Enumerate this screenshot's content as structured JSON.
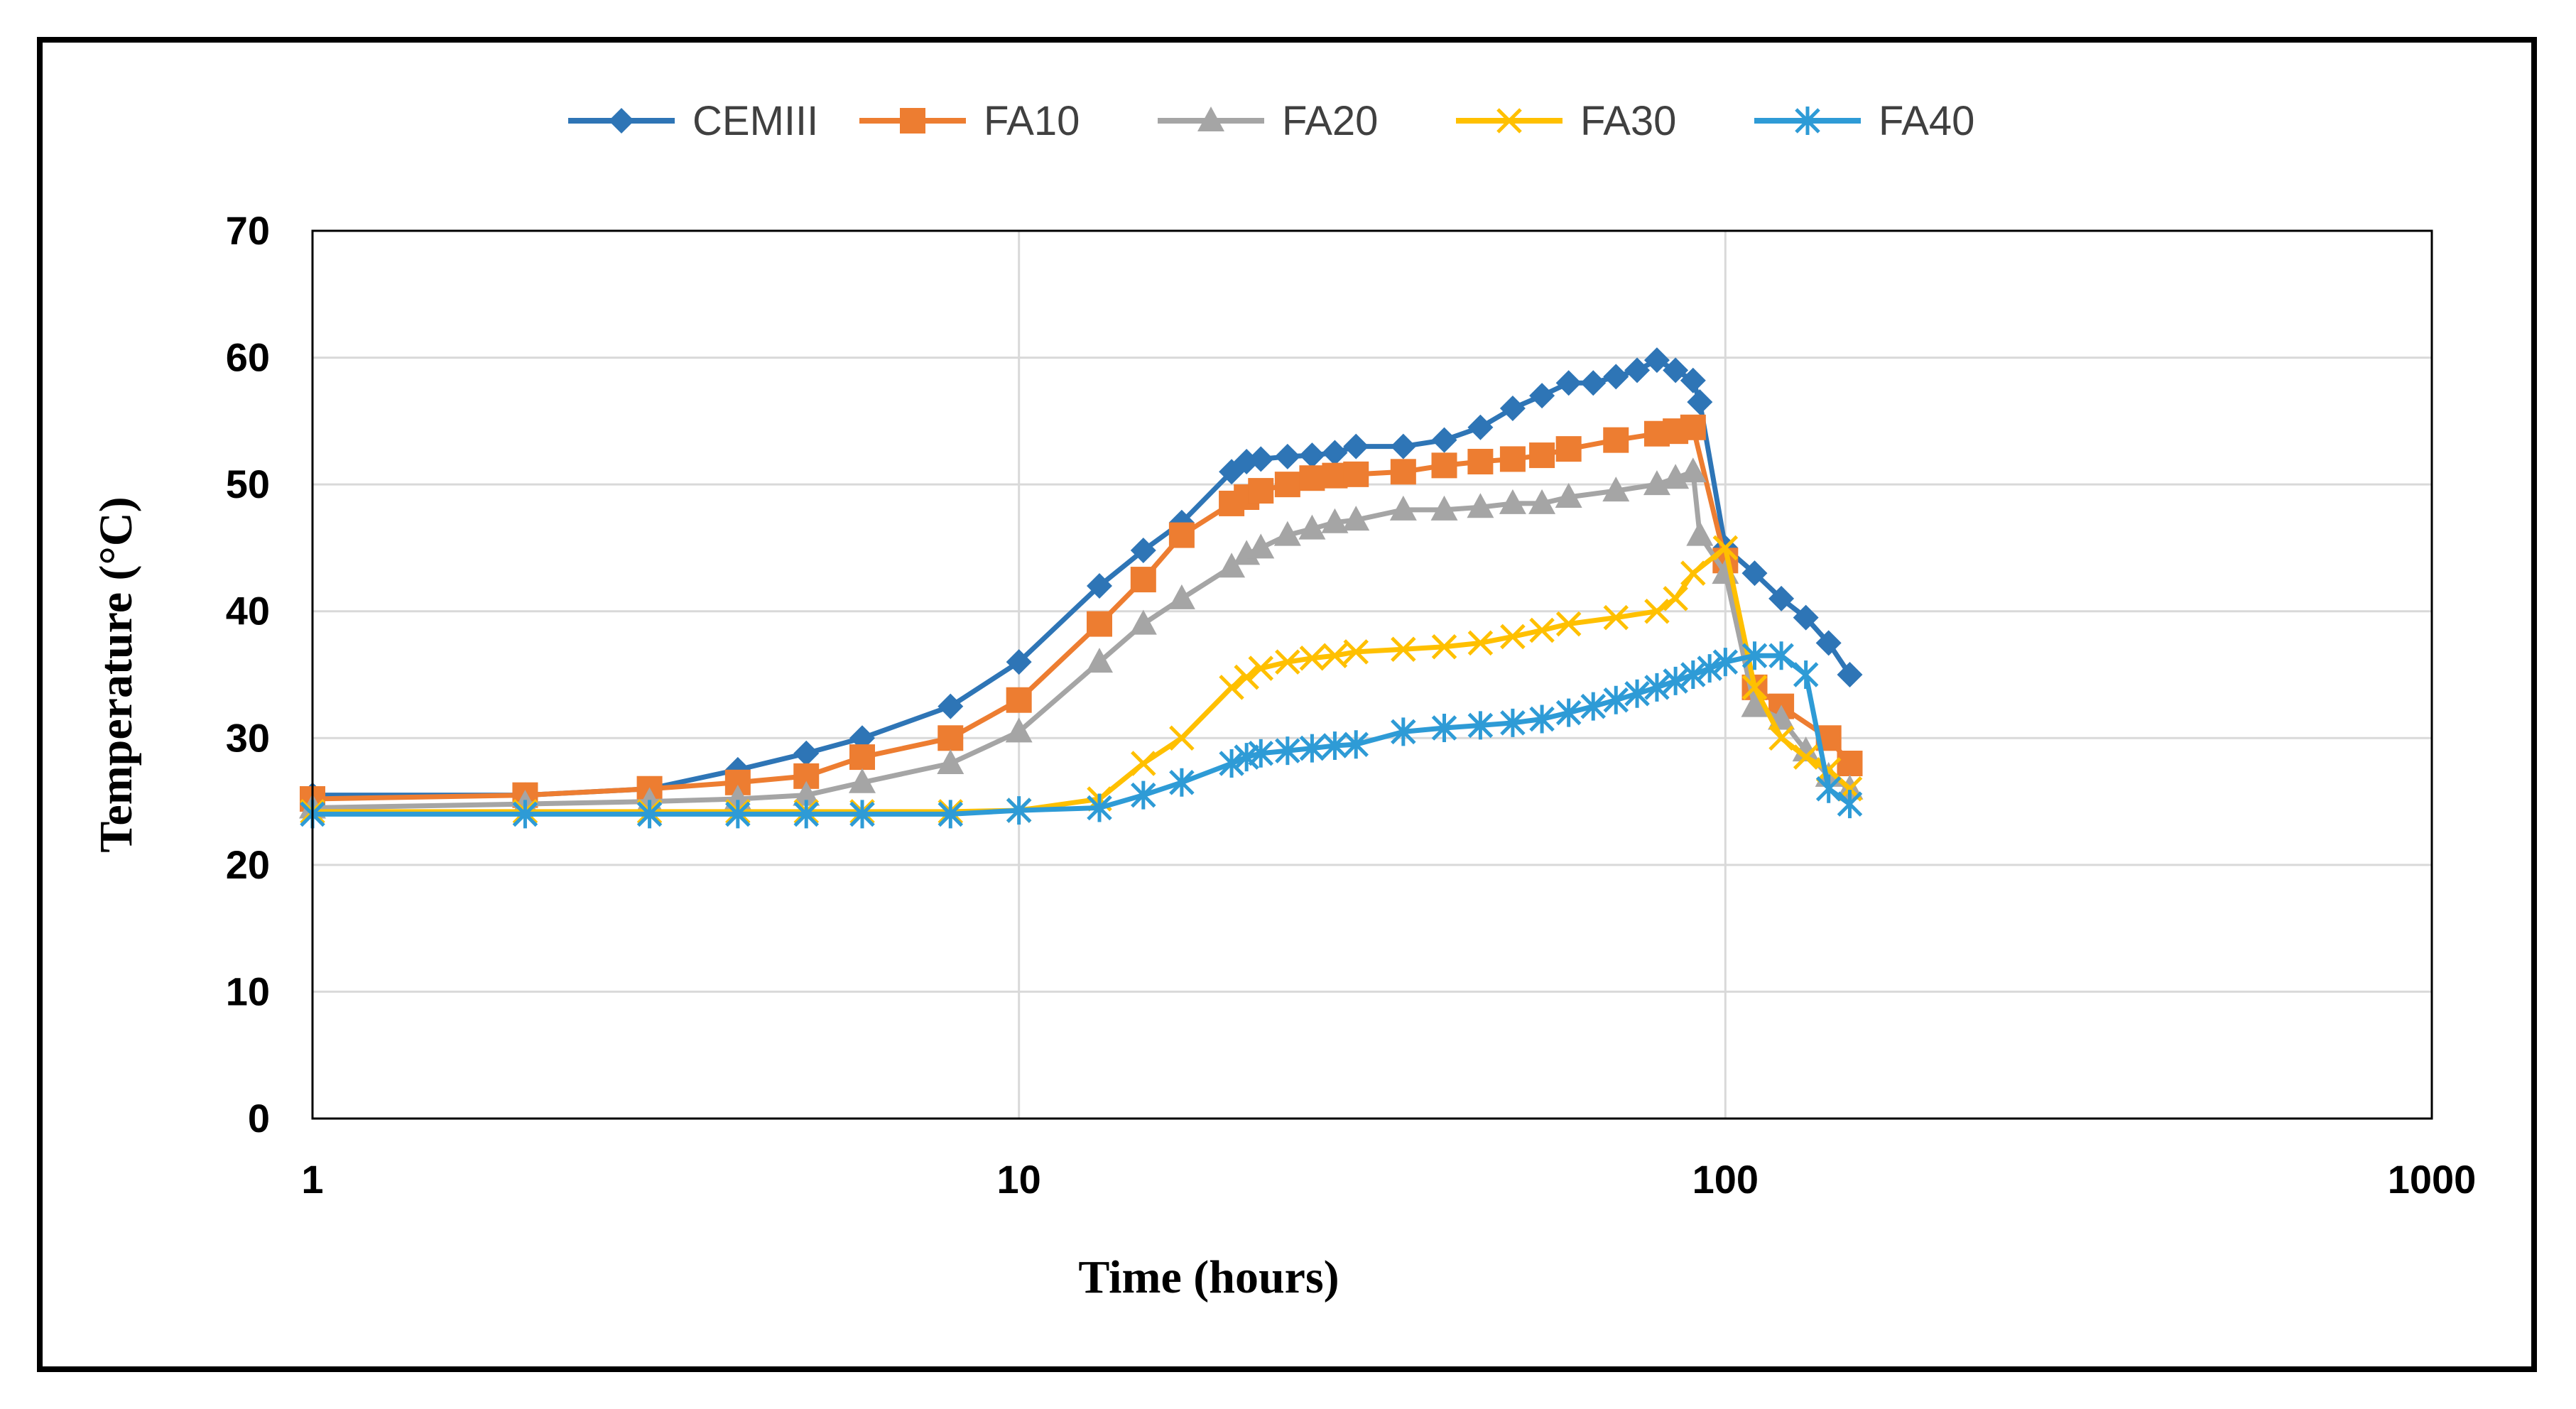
{
  "chart_data": {
    "type": "line",
    "title": "",
    "xlabel": "Time (hours)",
    "ylabel": "Temperature (°C)",
    "xscale": "log",
    "xlim": [
      1,
      1000
    ],
    "ylim": [
      0,
      70
    ],
    "x_ticks": [
      1,
      10,
      100,
      1000
    ],
    "x_tick_labels": [
      "1",
      "10",
      "100",
      "1000"
    ],
    "y_ticks": [
      0,
      10,
      20,
      30,
      40,
      50,
      60,
      70
    ],
    "y_tick_labels": [
      "0",
      "10",
      "20",
      "30",
      "40",
      "50",
      "60",
      "70"
    ],
    "grid": true,
    "legend_position": "top-center",
    "series": [
      {
        "name": "CEMIII",
        "color": "#2E75B6",
        "marker": "diamond",
        "points": [
          [
            1,
            25.5
          ],
          [
            2,
            25.5
          ],
          [
            3,
            26
          ],
          [
            4,
            27.5
          ],
          [
            5,
            28.8
          ],
          [
            6,
            30
          ],
          [
            8,
            32.5
          ],
          [
            10,
            36
          ],
          [
            13,
            42
          ],
          [
            15,
            44.8
          ],
          [
            17,
            47
          ],
          [
            20,
            51
          ],
          [
            21,
            51.8
          ],
          [
            22,
            52
          ],
          [
            24,
            52.2
          ],
          [
            26,
            52.3
          ],
          [
            28,
            52.5
          ],
          [
            30,
            53
          ],
          [
            35,
            53
          ],
          [
            40,
            53.5
          ],
          [
            45,
            54.5
          ],
          [
            50,
            56
          ],
          [
            55,
            57
          ],
          [
            60,
            58
          ],
          [
            65,
            58
          ],
          [
            70,
            58.5
          ],
          [
            75,
            59
          ],
          [
            80,
            59.8
          ],
          [
            85,
            59
          ],
          [
            90,
            58.2
          ],
          [
            92,
            56.5
          ],
          [
            100,
            45
          ],
          [
            110,
            43
          ],
          [
            120,
            41
          ],
          [
            130,
            39.5
          ],
          [
            140,
            37.5
          ],
          [
            150,
            35
          ]
        ]
      },
      {
        "name": "FA10",
        "color": "#ED7D31",
        "marker": "square",
        "points": [
          [
            1,
            25.2
          ],
          [
            2,
            25.5
          ],
          [
            3,
            26
          ],
          [
            4,
            26.5
          ],
          [
            5,
            27
          ],
          [
            6,
            28.5
          ],
          [
            8,
            30
          ],
          [
            10,
            33
          ],
          [
            13,
            39
          ],
          [
            15,
            42.5
          ],
          [
            17,
            46
          ],
          [
            20,
            48.5
          ],
          [
            21,
            49
          ],
          [
            22,
            49.5
          ],
          [
            24,
            50
          ],
          [
            26,
            50.5
          ],
          [
            28,
            50.7
          ],
          [
            30,
            50.8
          ],
          [
            35,
            51
          ],
          [
            40,
            51.5
          ],
          [
            45,
            51.8
          ],
          [
            50,
            52
          ],
          [
            55,
            52.3
          ],
          [
            60,
            52.8
          ],
          [
            70,
            53.5
          ],
          [
            80,
            54
          ],
          [
            85,
            54.2
          ],
          [
            90,
            54.5
          ],
          [
            100,
            44
          ],
          [
            110,
            34
          ],
          [
            120,
            32.5
          ],
          [
            140,
            30
          ],
          [
            150,
            28
          ]
        ]
      },
      {
        "name": "FA20",
        "color": "#A5A5A5",
        "marker": "triangle",
        "points": [
          [
            1,
            24.5
          ],
          [
            2,
            24.8
          ],
          [
            3,
            25
          ],
          [
            4,
            25.2
          ],
          [
            5,
            25.5
          ],
          [
            6,
            26.5
          ],
          [
            8,
            28
          ],
          [
            10,
            30.5
          ],
          [
            13,
            36
          ],
          [
            15,
            39
          ],
          [
            17,
            41
          ],
          [
            20,
            43.5
          ],
          [
            21,
            44.5
          ],
          [
            22,
            45
          ],
          [
            24,
            46
          ],
          [
            26,
            46.5
          ],
          [
            28,
            47
          ],
          [
            30,
            47.2
          ],
          [
            35,
            48
          ],
          [
            40,
            48
          ],
          [
            45,
            48.2
          ],
          [
            50,
            48.5
          ],
          [
            55,
            48.5
          ],
          [
            60,
            49
          ],
          [
            70,
            49.5
          ],
          [
            80,
            50
          ],
          [
            85,
            50.5
          ],
          [
            90,
            51
          ],
          [
            92,
            46
          ],
          [
            100,
            43
          ],
          [
            110,
            32.5
          ],
          [
            120,
            31.5
          ],
          [
            130,
            29
          ],
          [
            140,
            27
          ],
          [
            150,
            26
          ]
        ]
      },
      {
        "name": "FA30",
        "color": "#FFC000",
        "marker": "x",
        "points": [
          [
            1,
            24.2
          ],
          [
            2,
            24.2
          ],
          [
            3,
            24.2
          ],
          [
            4,
            24.2
          ],
          [
            5,
            24.2
          ],
          [
            6,
            24.2
          ],
          [
            8,
            24.2
          ],
          [
            10,
            24.3
          ],
          [
            13,
            25.2
          ],
          [
            15,
            28
          ],
          [
            17,
            30
          ],
          [
            20,
            34
          ],
          [
            21,
            34.8
          ],
          [
            22,
            35.5
          ],
          [
            24,
            36
          ],
          [
            26,
            36.3
          ],
          [
            28,
            36.5
          ],
          [
            30,
            36.8
          ],
          [
            35,
            37
          ],
          [
            40,
            37.2
          ],
          [
            45,
            37.5
          ],
          [
            50,
            38
          ],
          [
            55,
            38.5
          ],
          [
            60,
            39
          ],
          [
            70,
            39.5
          ],
          [
            80,
            40
          ],
          [
            85,
            41
          ],
          [
            90,
            43
          ],
          [
            100,
            45
          ],
          [
            110,
            34
          ],
          [
            120,
            30
          ],
          [
            130,
            28.5
          ],
          [
            140,
            27.5
          ],
          [
            150,
            26
          ]
        ]
      },
      {
        "name": "FA40",
        "color": "#2E9BD6",
        "marker": "star",
        "points": [
          [
            1,
            24
          ],
          [
            2,
            24
          ],
          [
            3,
            24
          ],
          [
            4,
            24
          ],
          [
            5,
            24
          ],
          [
            6,
            24
          ],
          [
            8,
            24
          ],
          [
            10,
            24.3
          ],
          [
            13,
            24.5
          ],
          [
            15,
            25.5
          ],
          [
            17,
            26.5
          ],
          [
            20,
            28
          ],
          [
            21,
            28.5
          ],
          [
            22,
            28.8
          ],
          [
            24,
            29
          ],
          [
            26,
            29.2
          ],
          [
            28,
            29.4
          ],
          [
            30,
            29.5
          ],
          [
            35,
            30.5
          ],
          [
            40,
            30.8
          ],
          [
            45,
            31
          ],
          [
            50,
            31.2
          ],
          [
            55,
            31.5
          ],
          [
            60,
            32
          ],
          [
            65,
            32.5
          ],
          [
            70,
            33
          ],
          [
            75,
            33.5
          ],
          [
            80,
            34
          ],
          [
            85,
            34.5
          ],
          [
            90,
            35
          ],
          [
            95,
            35.5
          ],
          [
            100,
            36
          ],
          [
            110,
            36.5
          ],
          [
            120,
            36.5
          ],
          [
            130,
            35
          ],
          [
            140,
            26
          ],
          [
            150,
            24.8
          ]
        ]
      }
    ]
  }
}
